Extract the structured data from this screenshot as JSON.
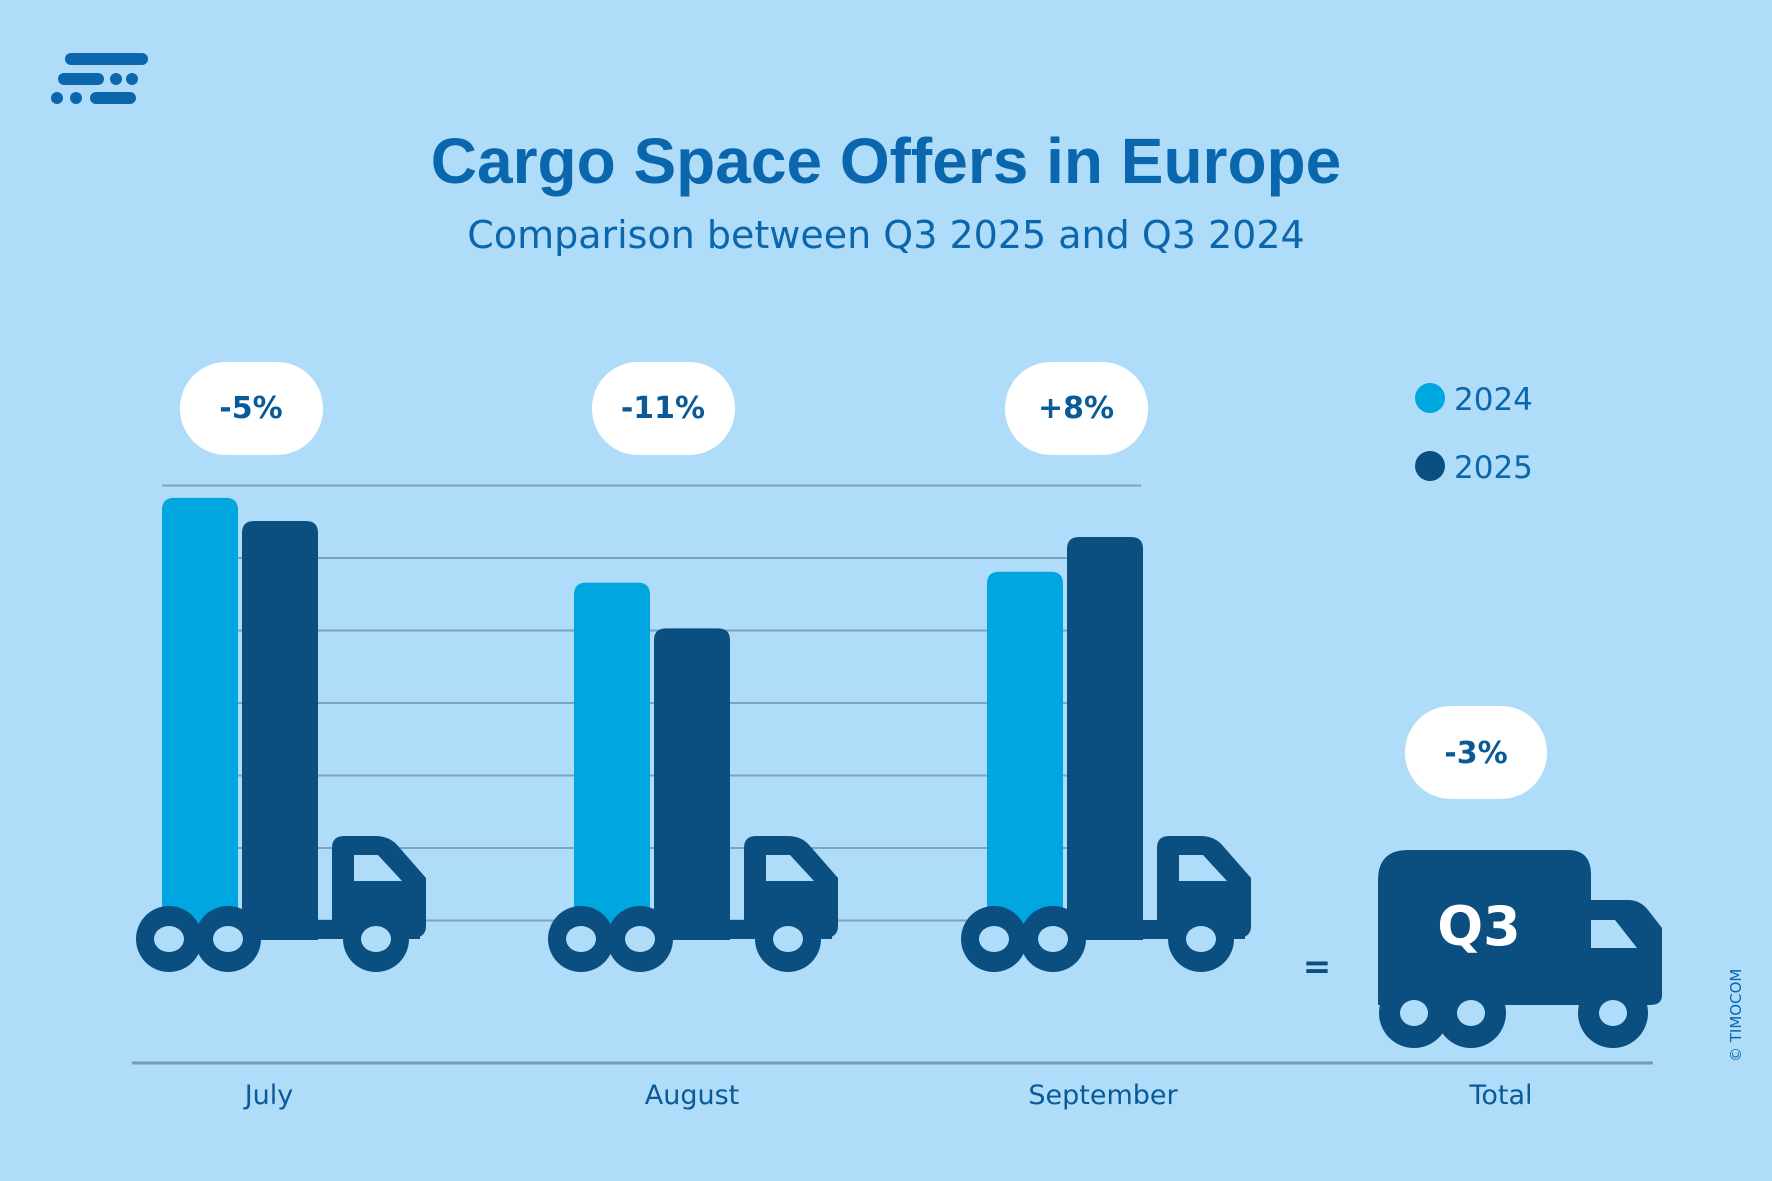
{
  "chart_data": {
    "type": "bar",
    "title": "Cargo Space Offers in Europe",
    "subtitle": "Comparison between Q3 2025 and Q3 2024",
    "categories": [
      "July",
      "August",
      "September"
    ],
    "series": [
      {
        "name": "2024",
        "values": [
          6.83,
          5.66,
          5.81
        ],
        "color": "#00a6e0"
      },
      {
        "name": "2025",
        "values": [
          6.51,
          5.03,
          6.29
        ],
        "color": "#0b4f80"
      }
    ],
    "changes": [
      "-5%",
      "-11%",
      "+8%"
    ],
    "total": {
      "label": "Total",
      "icon_text": "Q3",
      "change": "-3%",
      "equals": "="
    },
    "ylim": [
      0,
      7
    ],
    "grid": true,
    "legend_placement": "top-right",
    "xlabel": "",
    "ylabel": ""
  },
  "credit": "© TIMOCOM",
  "logo": "TIMOCOM",
  "colors": {
    "background": "#afdcf8",
    "accent": "#0a66ad",
    "light": "#00a6e0",
    "dark": "#0b4f80"
  }
}
